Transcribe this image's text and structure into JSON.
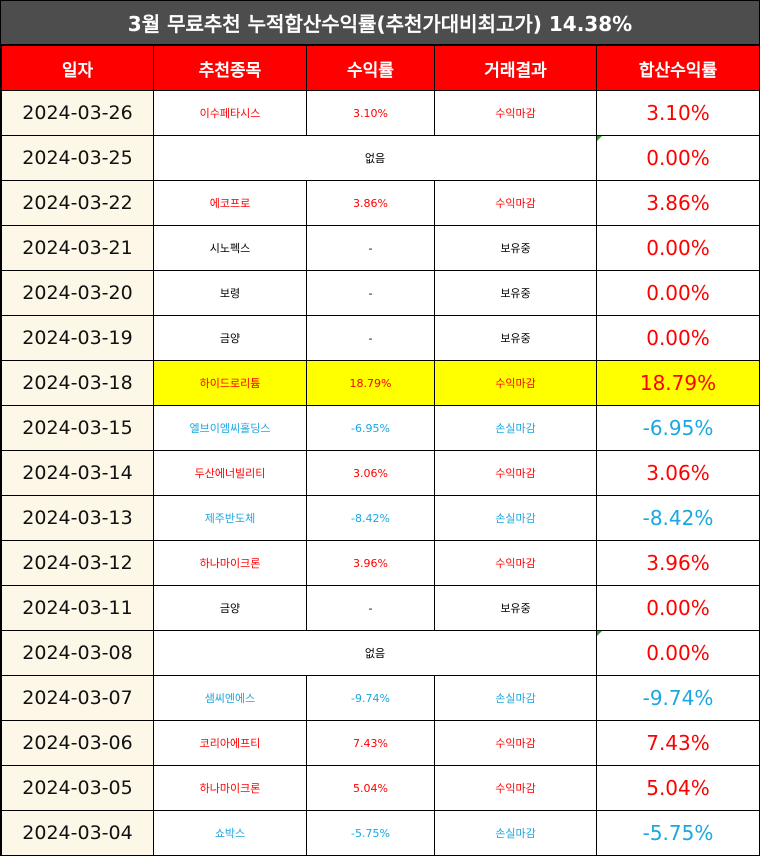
{
  "title": "3월 무료추천 누적합산수익률(추천가대비최고가) 14.38%",
  "headers": [
    "일자",
    "추천종목",
    "수익률",
    "거래결과",
    "합산수익률"
  ],
  "rows": [
    {
      "date": "2024-03-26",
      "stock": "이수페타시스",
      "rate": "3.10%",
      "result": "수익마감",
      "total": "3.10%",
      "tone": "pos"
    },
    {
      "date": "2024-03-25",
      "none": "없음",
      "total": "0.00%",
      "tone": "pos",
      "empty": true
    },
    {
      "date": "2024-03-22",
      "stock": "에코프로",
      "rate": "3.86%",
      "result": "수익마감",
      "total": "3.86%",
      "tone": "pos"
    },
    {
      "date": "2024-03-21",
      "stock": "시노펙스",
      "rate": "-",
      "result": "보유중",
      "total": "0.00%",
      "tone": "neu"
    },
    {
      "date": "2024-03-20",
      "stock": "보령",
      "rate": "-",
      "result": "보유중",
      "total": "0.00%",
      "tone": "neu"
    },
    {
      "date": "2024-03-19",
      "stock": "금양",
      "rate": "-",
      "result": "보유중",
      "total": "0.00%",
      "tone": "neu"
    },
    {
      "date": "2024-03-18",
      "stock": "하이드로리튬",
      "rate": "18.79%",
      "result": "수익마감",
      "total": "18.79%",
      "tone": "pos",
      "highlight": true
    },
    {
      "date": "2024-03-15",
      "stock": "엘브이엠씨홀딩스",
      "rate": "-6.95%",
      "result": "손실마감",
      "total": "-6.95%",
      "tone": "neg"
    },
    {
      "date": "2024-03-14",
      "stock": "두산에너빌리티",
      "rate": "3.06%",
      "result": "수익마감",
      "total": "3.06%",
      "tone": "pos"
    },
    {
      "date": "2024-03-13",
      "stock": "제주반도체",
      "rate": "-8.42%",
      "result": "손실마감",
      "total": "-8.42%",
      "tone": "neg"
    },
    {
      "date": "2024-03-12",
      "stock": "하나마이크론",
      "rate": "3.96%",
      "result": "수익마감",
      "total": "3.96%",
      "tone": "pos"
    },
    {
      "date": "2024-03-11",
      "stock": "금양",
      "rate": "-",
      "result": "보유중",
      "total": "0.00%",
      "tone": "neu"
    },
    {
      "date": "2024-03-08",
      "none": "없음",
      "total": "0.00%",
      "tone": "pos",
      "empty": true
    },
    {
      "date": "2024-03-07",
      "stock": "샘씨엔에스",
      "rate": "-9.74%",
      "result": "손실마감",
      "total": "-9.74%",
      "tone": "neg"
    },
    {
      "date": "2024-03-06",
      "stock": "코리아에프티",
      "rate": "7.43%",
      "result": "수익마감",
      "total": "7.43%",
      "tone": "pos"
    },
    {
      "date": "2024-03-05",
      "stock": "하나마이크론",
      "rate": "5.04%",
      "result": "수익마감",
      "total": "5.04%",
      "tone": "pos"
    },
    {
      "date": "2024-03-04",
      "stock": "쇼박스",
      "rate": "-5.75%",
      "result": "손실마감",
      "total": "-5.75%",
      "tone": "neg"
    }
  ],
  "colors": {
    "title_bg": "#4d4d4d",
    "header_bg": "#ff0000",
    "date_bg": "#fdf7e7",
    "profit": "#ff0000",
    "loss": "#1ba7e0",
    "highlight": "#ffff00"
  }
}
